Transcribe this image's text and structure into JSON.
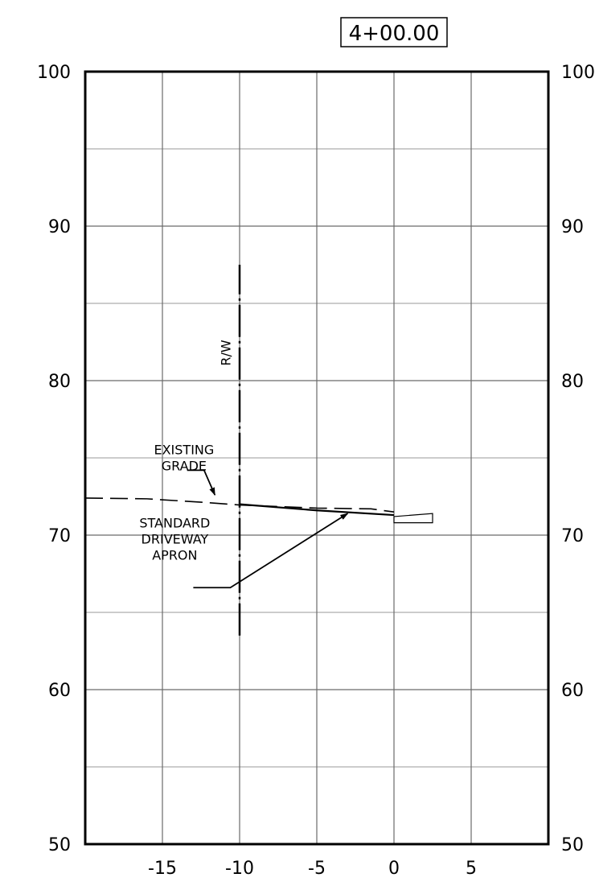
{
  "station": {
    "label": "4+00.00"
  },
  "chart_data": {
    "type": "cross-section",
    "title": "4+00.00",
    "xlabel": "",
    "ylabel": "",
    "xlim": [
      -20,
      10
    ],
    "ylim": [
      50,
      100
    ],
    "grid": true,
    "x_ticks": [
      -15,
      -10,
      -5,
      0,
      5
    ],
    "x_tick_labels": [
      "-15",
      "-10",
      "-5",
      "0",
      "5"
    ],
    "y_ticks": [
      50,
      60,
      70,
      80,
      90,
      100
    ],
    "y_tick_labels": [
      "50",
      "60",
      "70",
      "80",
      "90",
      "100"
    ],
    "y_minor_gridlines": [
      55,
      65,
      75,
      85,
      95
    ],
    "series": [
      {
        "name": "EXISTING GRADE",
        "style": "dashed",
        "x": [
          -20,
          -16,
          -12,
          -10,
          -5,
          -1.5,
          0
        ],
        "y": [
          72.4,
          72.35,
          72.1,
          71.95,
          71.75,
          71.7,
          71.5
        ]
      },
      {
        "name": "STANDARD DRIVEWAY APRON",
        "style": "solid",
        "x": [
          -10,
          -5,
          0
        ],
        "y": [
          72.0,
          71.6,
          71.3
        ]
      },
      {
        "name": "R/W",
        "style": "dash-dot",
        "x": [
          -10,
          -10
        ],
        "y": [
          63.5,
          87.5
        ]
      }
    ],
    "curb": {
      "x": [
        0,
        2.5
      ],
      "y_top": [
        71.2,
        71.4
      ],
      "y_bottom": [
        70.8,
        70.8
      ]
    },
    "annotations": [
      {
        "lines": [
          "EXISTING",
          "GRADE"
        ],
        "text_at": [
          -13.6,
          74.2
        ],
        "leader": [
          [
            -13.4,
            74.2
          ],
          [
            -12.3,
            74.2
          ],
          [
            -11.6,
            72.6
          ]
        ]
      },
      {
        "lines": [
          "STANDARD",
          "DRIVEWAY",
          "APRON"
        ],
        "text_at": [
          -14.2,
          68.4
        ],
        "leader": [
          [
            -13.0,
            66.6
          ],
          [
            -10.6,
            66.6
          ],
          [
            -3.0,
            71.4
          ]
        ]
      },
      {
        "lines": [
          "R/W"
        ],
        "text_at": [
          -10.6,
          81.8
        ],
        "rotation": -90
      }
    ],
    "colors": {
      "frame": "#000000",
      "grid": "#9a9a9a",
      "lines": "#000000"
    }
  }
}
